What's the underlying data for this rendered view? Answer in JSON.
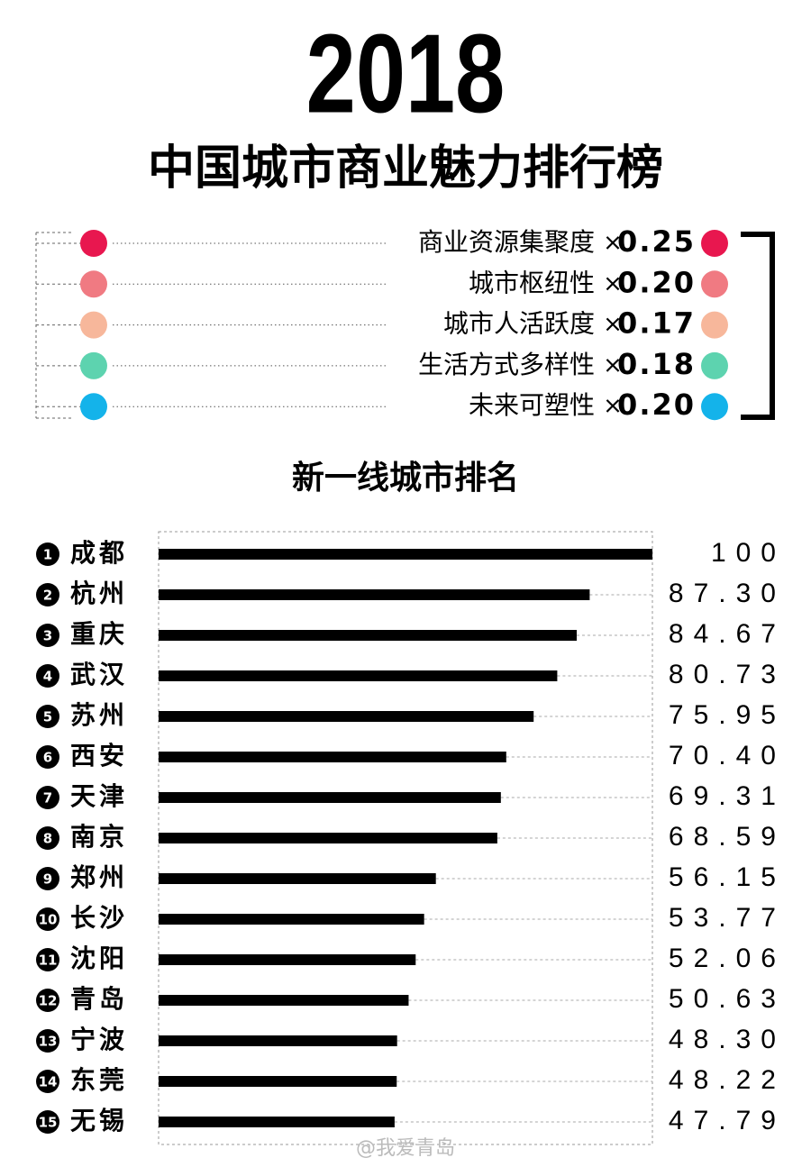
{
  "chart_data": {
    "type": "bar",
    "title": "2018",
    "subtitle": "中国城市商业魅力排行榜",
    "operator": "×",
    "factors": [
      {
        "name": "商业资源集聚度",
        "weight": "0.25",
        "color": "#e8174f"
      },
      {
        "name": "城市枢纽性",
        "weight": "0.20",
        "color": "#f07a82"
      },
      {
        "name": "城市人活跃度",
        "weight": "0.17",
        "color": "#f7b79b"
      },
      {
        "name": "生活方式多样性",
        "weight": "0.18",
        "color": "#5dd3af"
      },
      {
        "name": "未来可塑性",
        "weight": "0.20",
        "color": "#14b3ea"
      }
    ],
    "chart_title": "新一线城市排名",
    "ranks": [
      1,
      2,
      3,
      4,
      5,
      6,
      7,
      8,
      9,
      10,
      11,
      12,
      13,
      14,
      15
    ],
    "categories": [
      "成都",
      "杭州",
      "重庆",
      "武汉",
      "苏州",
      "西安",
      "天津",
      "南京",
      "郑州",
      "长沙",
      "沈阳",
      "青岛",
      "宁波",
      "东莞",
      "无锡"
    ],
    "values": [
      100,
      87.3,
      84.67,
      80.73,
      75.95,
      70.4,
      69.31,
      68.59,
      56.15,
      53.77,
      52.06,
      50.63,
      48.3,
      48.22,
      47.79
    ],
    "value_labels": [
      "100",
      "87.30",
      "84.67",
      "80.73",
      "75.95",
      "70.40",
      "69.31",
      "68.59",
      "56.15",
      "53.77",
      "52.06",
      "50.63",
      "48.30",
      "48.22",
      "47.79"
    ],
    "color": "#000000",
    "xlim": [
      0,
      100
    ],
    "watermark": "@我爱青岛"
  }
}
